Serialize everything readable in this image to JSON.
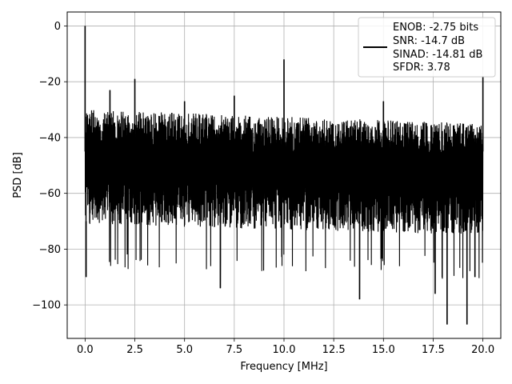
{
  "chart_data": {
    "type": "line",
    "title": "",
    "xlabel": "Frequency [MHz]",
    "ylabel": "PSD [dB]",
    "xlim": [
      -0.9,
      20.9
    ],
    "ylim": [
      -112,
      5
    ],
    "x_ticks": [
      0.0,
      2.5,
      5.0,
      7.5,
      10.0,
      12.5,
      15.0,
      17.5,
      20.0
    ],
    "x_tick_labels": [
      "0.0",
      "2.5",
      "5.0",
      "7.5",
      "10.0",
      "12.5",
      "15.0",
      "17.5",
      "20.0"
    ],
    "y_ticks": [
      0,
      -20,
      -40,
      -60,
      -80,
      -100
    ],
    "y_tick_labels": [
      "0",
      "−20",
      "−40",
      "−60",
      "−80",
      "−100"
    ],
    "grid": true,
    "legend_position": "top-right",
    "legend_entries": [
      "ENOB: -2.75 bits",
      "SNR: -14.7 dB",
      "SINAD: -14.81 dB",
      "SFDR: 3.78"
    ],
    "series": [
      {
        "color": "#000000",
        "x_range": [
          0.0,
          20.0
        ],
        "noise_top_start": -30,
        "noise_top_end": -35,
        "noise_floor_start": -79,
        "noise_floor_end": -83,
        "spikes": [
          {
            "x": 0.0,
            "y": 0
          },
          {
            "x": 1.25,
            "y": -23
          },
          {
            "x": 2.5,
            "y": -19
          },
          {
            "x": 5.0,
            "y": -27
          },
          {
            "x": 7.5,
            "y": -25
          },
          {
            "x": 10.0,
            "y": -12
          },
          {
            "x": 15.0,
            "y": -27
          },
          {
            "x": 20.0,
            "y": -18
          }
        ],
        "dips": [
          {
            "x": 0.05,
            "y": -90
          },
          {
            "x": 6.8,
            "y": -94
          },
          {
            "x": 13.8,
            "y": -98
          },
          {
            "x": 17.6,
            "y": -96
          },
          {
            "x": 18.2,
            "y": -107
          },
          {
            "x": 19.2,
            "y": -107
          },
          {
            "x": 19.6,
            "y": -90
          }
        ]
      }
    ]
  }
}
